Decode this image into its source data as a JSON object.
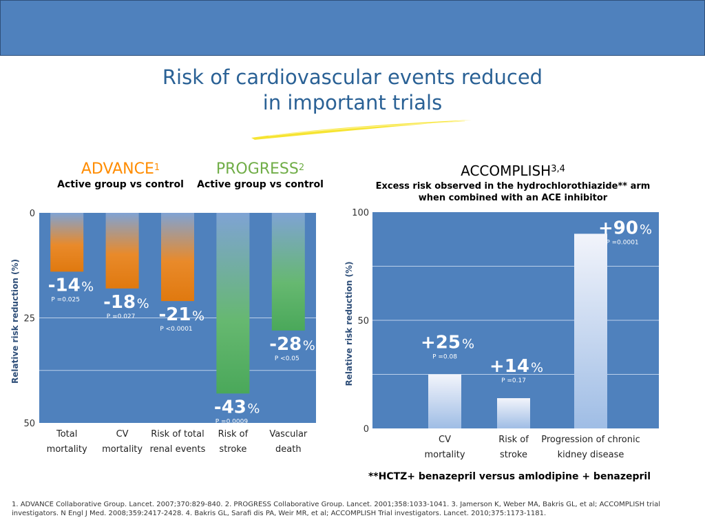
{
  "slide": {
    "title_line1": "Risk of cardiovascular events reduced",
    "title_line2": "in important trials",
    "colors": {
      "header_bar": "#4f81bd",
      "title": "#2a6195",
      "advance": "#ff8c00",
      "progress": "#70ad47",
      "plot_bg": "#4f81bd"
    }
  },
  "advance": {
    "name": "ADVANCE",
    "sup": "1",
    "subtitle": "Active group vs control"
  },
  "progress": {
    "name": "PROGRESS",
    "sup": "2",
    "subtitle": "Active group vs control"
  },
  "accomplish": {
    "name": "ACCOMPLISH",
    "sup": "3,4",
    "subtitle_line1": "Excess risk observed in the hydrochlorothiazide** arm",
    "subtitle_line2": "when combined with an ACE inhibitor",
    "footnote": "**HCTZ+ benazepril versus amlodipine + benazepril"
  },
  "references": "1. ADVANCE Collaborative Group. Lancet. 2007;370:829-840. 2. PROGRESS Collaborative Group. Lancet. 2001;358:1033-1041. 3. Jamerson K, Weber MA, Bakris GL, et al; ACCOMPLISH trial investigators. N Engl J Med. 2008;359:2417-2428. 4. Bakris GL, Sarafi dis PA, Weir MR, et al; ACCOMPLISH Trial investigators. Lancet. 2010;375:1173-1181.",
  "chart_data": [
    {
      "type": "bar",
      "ylabel": "Relative risk reduction (%)",
      "ylim": [
        0,
        50
      ],
      "yticks": [
        0,
        25,
        50
      ],
      "y_inverted": true,
      "grid": true,
      "categories": [
        [
          "Total",
          "mortality"
        ],
        [
          "CV",
          "mortality"
        ],
        [
          "Risk of total",
          "renal events"
        ],
        [
          "Risk of",
          "stroke"
        ],
        [
          "Vascular",
          "death"
        ]
      ],
      "values": [
        14,
        18,
        21,
        43,
        28
      ],
      "labels": [
        "-14",
        "-18",
        "-21",
        "-43",
        "-28"
      ],
      "pvalues": [
        "P =0.025",
        "P =0.027",
        "P <0.0001",
        "P =0.0009",
        "P <0.05"
      ],
      "trial": [
        "ADVANCE",
        "ADVANCE",
        "ADVANCE",
        "PROGRESS",
        "PROGRESS"
      ]
    },
    {
      "type": "bar",
      "ylabel": "Relative risk reduction (%)",
      "ylim": [
        0,
        100
      ],
      "yticks": [
        0,
        50,
        100
      ],
      "grid": true,
      "categories": [
        [
          "CV",
          "mortality"
        ],
        [
          "Risk of",
          "stroke"
        ],
        [
          "Progression of chronic",
          "kidney disease"
        ]
      ],
      "values": [
        25,
        14,
        90
      ],
      "labels": [
        "+25",
        "+14",
        "+90"
      ],
      "pvalues": [
        "P =0.08",
        "P =0.17",
        "P =0.0001"
      ]
    }
  ]
}
